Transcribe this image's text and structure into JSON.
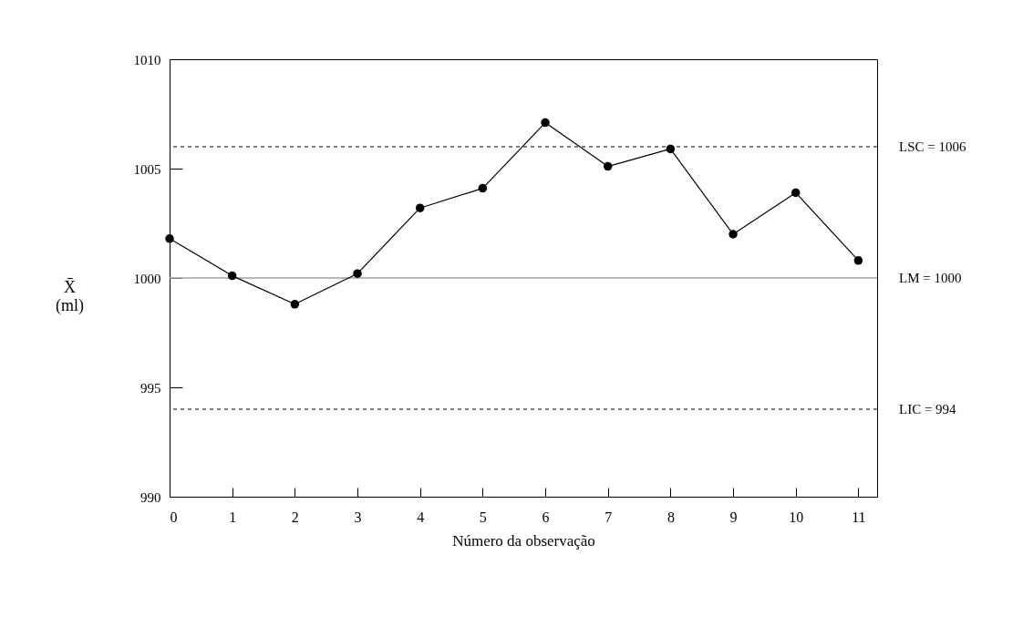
{
  "chart_data": {
    "type": "line",
    "xlabel": "Número da observação",
    "ylabel": "X̄\n(ml)",
    "x": [
      0,
      1,
      2,
      3,
      4,
      5,
      6,
      7,
      8,
      9,
      10,
      11
    ],
    "series": [
      {
        "color": "#000000",
        "values": [
          1001.8,
          1000.1,
          998.8,
          1000.2,
          1003.2,
          1004.1,
          1007.1,
          1005.1,
          1005.9,
          1002.0,
          1003.9,
          1000.8
        ]
      }
    ],
    "xlim": [
      0,
      11.3
    ],
    "xticks": [
      0,
      1,
      2,
      3,
      4,
      5,
      6,
      7,
      8,
      9,
      10,
      11
    ],
    "ylim": [
      990,
      1010
    ],
    "yticks": [
      990,
      995,
      1000,
      1005,
      1010
    ],
    "ref_lines": [
      {
        "axis": "y",
        "value": 1006,
        "label": "LSC = 1006",
        "line_style": "dashed"
      },
      {
        "axis": "y",
        "value": 1000,
        "label": "LM = 1000",
        "line_style": "solid",
        "color": "#a0a0a0"
      },
      {
        "axis": "y",
        "value": 994,
        "label": "LIC = 994",
        "line_style": "dashed"
      }
    ],
    "marker": "circle",
    "line_style": "solid",
    "grid": false
  }
}
